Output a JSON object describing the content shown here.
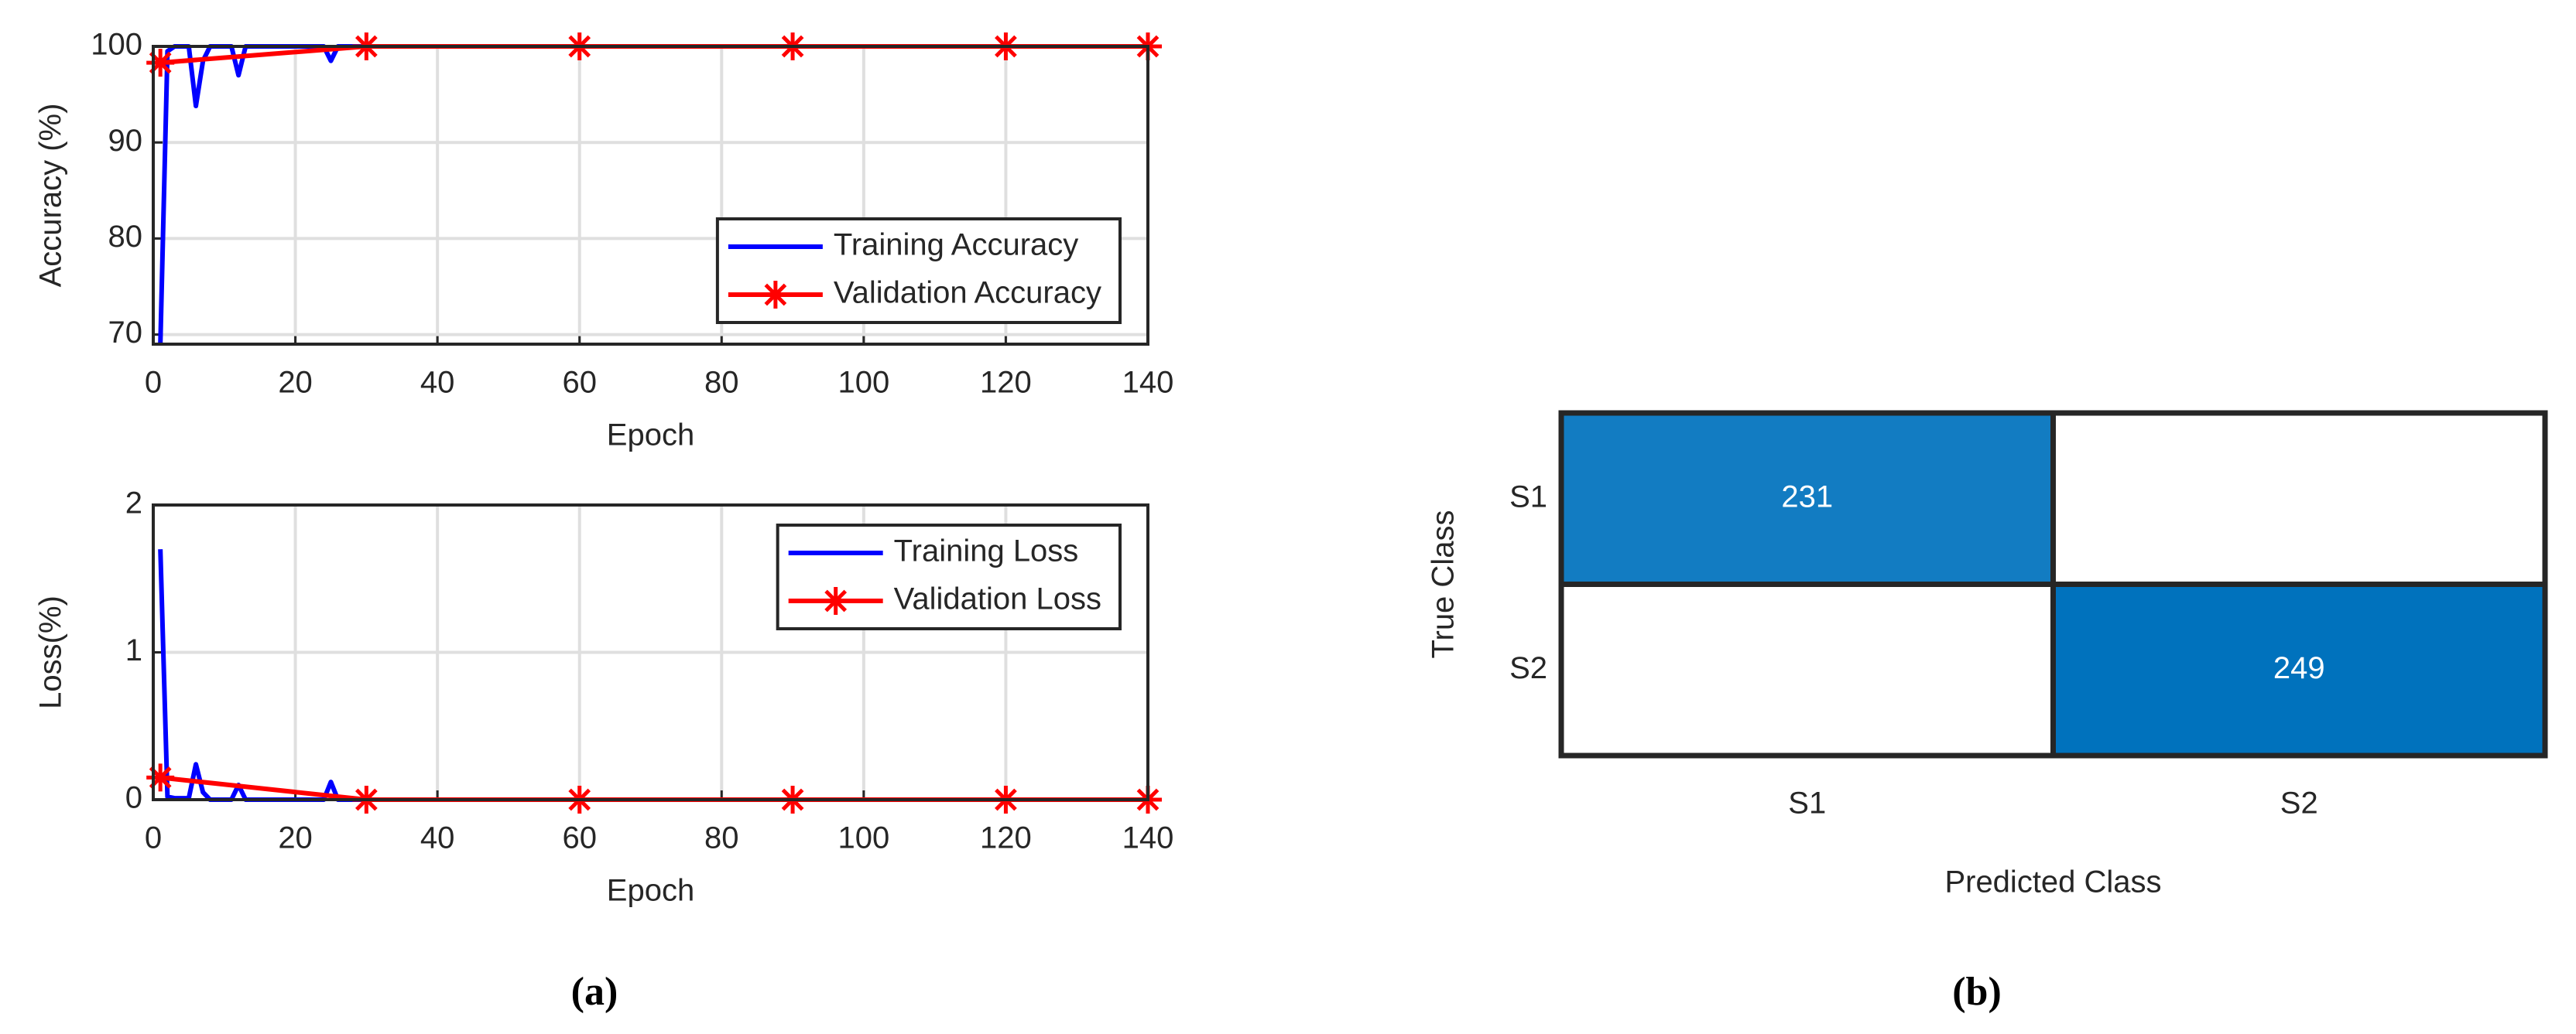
{
  "chart_data": [
    {
      "type": "line",
      "ylabel": "Accuracy (%)",
      "xlabel": "Epoch",
      "xlim": [
        0,
        140
      ],
      "xticks": [
        0,
        20,
        40,
        60,
        80,
        100,
        120,
        140
      ],
      "ylim": [
        69,
        100
      ],
      "yticks": [
        70,
        80,
        90,
        100
      ],
      "grid": true,
      "legend": "lower right",
      "series": [
        {
          "name": "Training Accuracy",
          "color": "#0000ff",
          "marker": "none",
          "x": [
            1,
            2,
            3,
            4,
            5,
            6,
            7,
            8,
            9,
            10,
            11,
            12,
            13,
            14,
            24,
            25,
            26,
            140
          ],
          "values": [
            69,
            99.5,
            100,
            100,
            100,
            93.8,
            98.5,
            100,
            100,
            100,
            100,
            97,
            100,
            100,
            100,
            98.5,
            100,
            100
          ]
        },
        {
          "name": "Validation Accuracy",
          "color": "#ff0000",
          "marker": "asterisk",
          "x": [
            1,
            30,
            60,
            90,
            120,
            140
          ],
          "values": [
            98.3,
            100,
            100,
            100,
            100,
            100
          ]
        }
      ]
    },
    {
      "type": "line",
      "ylabel": "Loss(%)",
      "xlabel": "Epoch",
      "xlim": [
        0,
        140
      ],
      "xticks": [
        0,
        20,
        40,
        60,
        80,
        100,
        120,
        140
      ],
      "ylim": [
        0,
        2
      ],
      "yticks": [
        0,
        1,
        2
      ],
      "grid": true,
      "legend": "upper right",
      "series": [
        {
          "name": "Training Loss",
          "color": "#0000ff",
          "marker": "none",
          "x": [
            1,
            2,
            3,
            4,
            5,
            6,
            7,
            8,
            11,
            12,
            13,
            24,
            25,
            26,
            140
          ],
          "values": [
            1.7,
            0.02,
            0.01,
            0.01,
            0.01,
            0.24,
            0.05,
            0,
            0,
            0.1,
            0,
            0,
            0.12,
            0,
            0
          ]
        },
        {
          "name": "Validation Loss",
          "color": "#ff0000",
          "marker": "asterisk",
          "x": [
            1,
            30,
            60,
            90,
            120,
            140
          ],
          "values": [
            0.15,
            0,
            0,
            0,
            0,
            0
          ]
        }
      ]
    },
    {
      "type": "heatmap",
      "xlabel": "Predicted Class",
      "ylabel": "True Class",
      "x_categories": [
        "S1",
        "S2"
      ],
      "y_categories": [
        "S1",
        "S2"
      ],
      "values": [
        [
          231,
          null
        ],
        [
          null,
          249
        ]
      ],
      "color": "#0072bd"
    }
  ],
  "captions": [
    "(a)",
    "(b)"
  ]
}
